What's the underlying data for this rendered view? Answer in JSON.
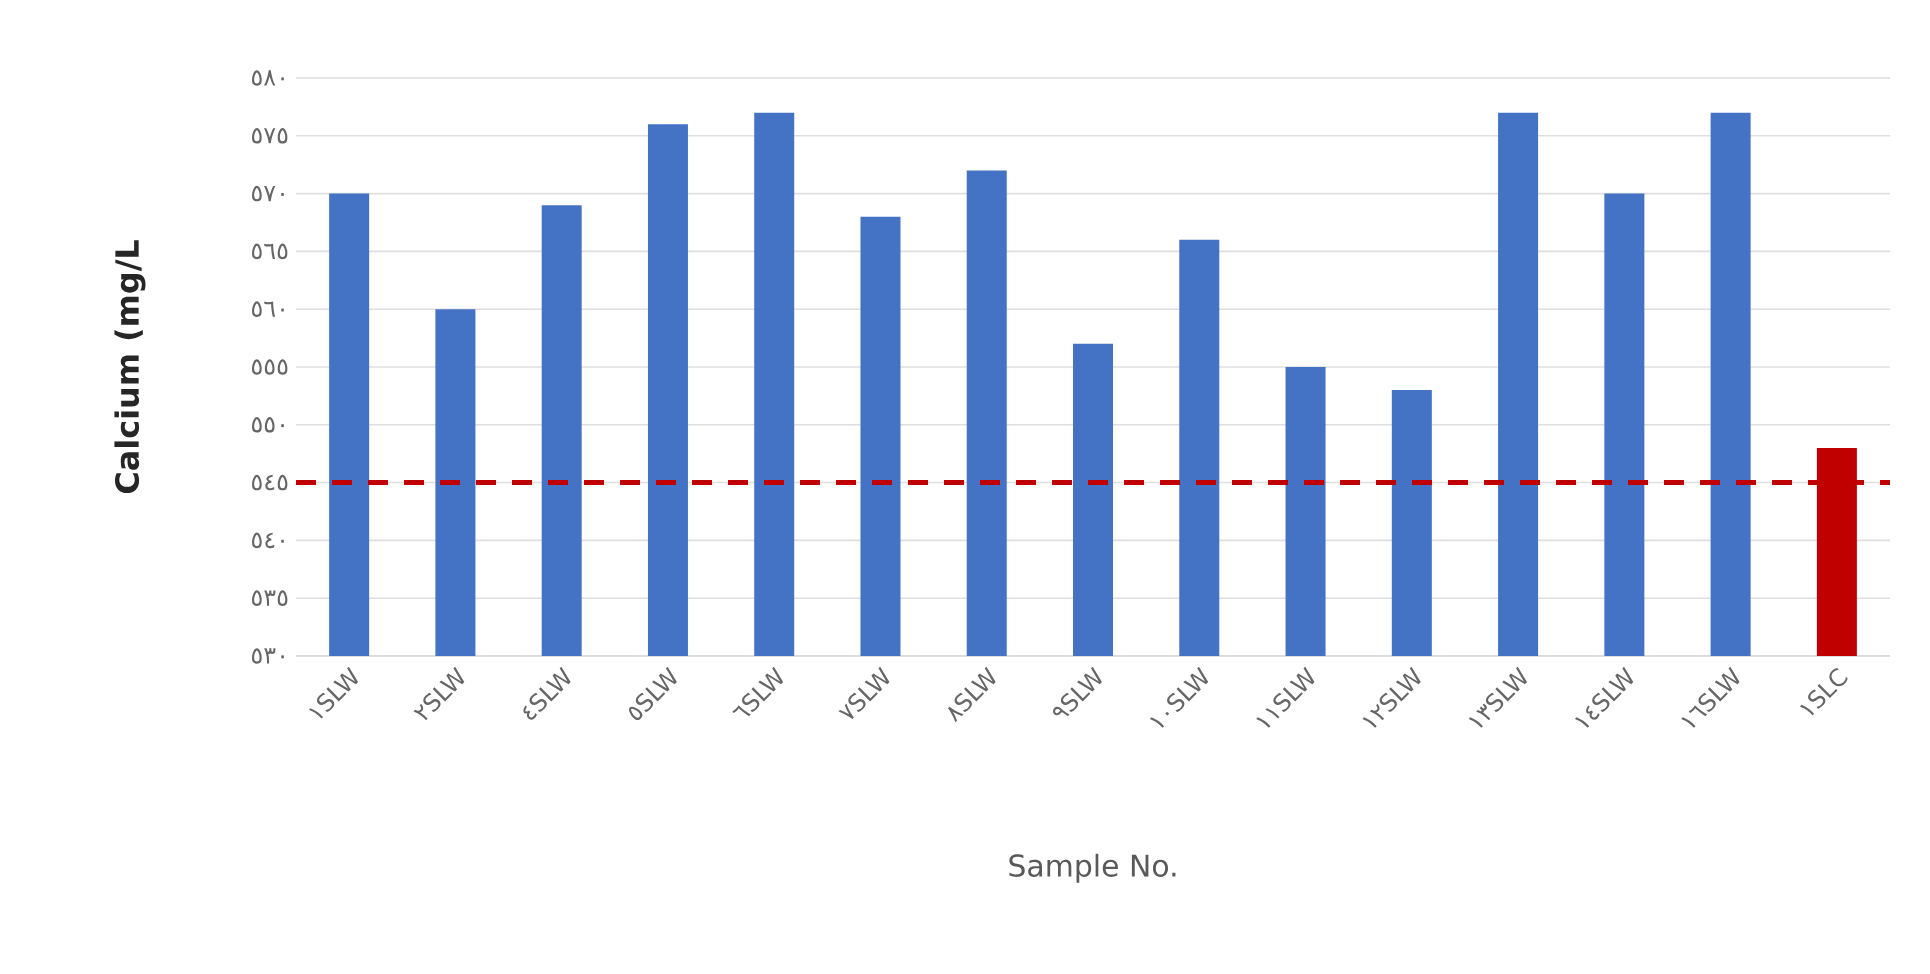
{
  "chart_data": {
    "type": "bar",
    "xlabel": "Sample No.",
    "ylabel": "Calcium (mg/L",
    "categories": [
      "١SLW",
      "٢SLW",
      "٤SLW",
      "٥SLW",
      "٦SLW",
      "٧SLW",
      "٨SLW",
      "٩SLW",
      "١٠SLW",
      "١١SLW",
      "١٢SLW",
      "١٣SLW",
      "١٤SLW",
      "١٦SLW",
      "١SLC"
    ],
    "values": [
      570,
      560,
      569,
      576,
      577,
      568,
      572,
      557,
      566,
      555,
      553,
      577,
      570,
      577,
      548
    ],
    "colors": [
      "#4472c4",
      "#4472c4",
      "#4472c4",
      "#4472c4",
      "#4472c4",
      "#4472c4",
      "#4472c4",
      "#4472c4",
      "#4472c4",
      "#4472c4",
      "#4472c4",
      "#4472c4",
      "#4472c4",
      "#4472c4",
      "#c00000"
    ],
    "ylim": [
      530,
      580
    ],
    "yticks": [
      {
        "value": 530,
        "label": "٥٣٠"
      },
      {
        "value": 535,
        "label": "٥٣٥"
      },
      {
        "value": 540,
        "label": "٥٤٠"
      },
      {
        "value": 545,
        "label": "٥٤٥"
      },
      {
        "value": 550,
        "label": "٥٥٠"
      },
      {
        "value": 555,
        "label": "٥٥٥"
      },
      {
        "value": 560,
        "label": "٥٦٠"
      },
      {
        "value": 565,
        "label": "٥٦٥"
      },
      {
        "value": 570,
        "label": "٥٧٠"
      },
      {
        "value": 575,
        "label": "٥٧٥"
      },
      {
        "value": 580,
        "label": "٥٨٠"
      }
    ],
    "grid": "y",
    "ref_lines": [
      {
        "axis": "y",
        "value": 545,
        "color": "#c00000",
        "line_style": "dashed"
      }
    ]
  }
}
